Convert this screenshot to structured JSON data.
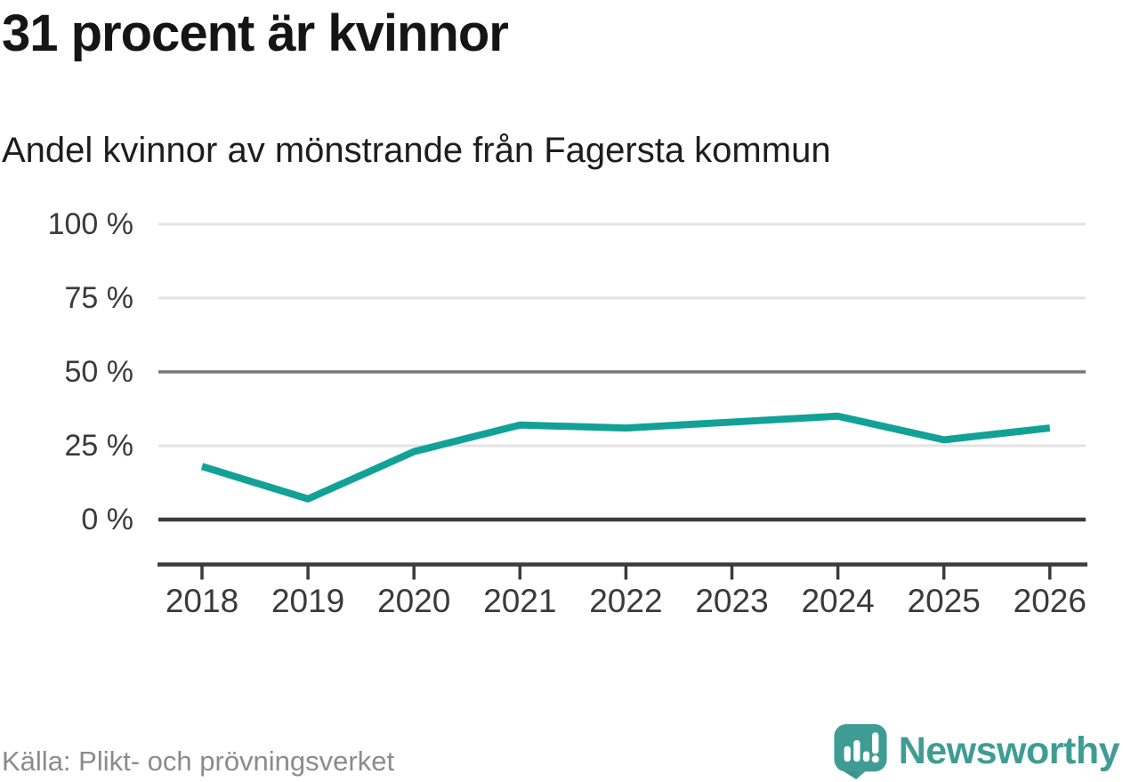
{
  "header": {
    "title": "31 procent är kvinnor",
    "subtitle": "Andel kvinnor av mönstrande från Fagersta kommun"
  },
  "chart_data": {
    "type": "line",
    "title": "31 procent är kvinnor",
    "subtitle": "Andel kvinnor av mönstrande från Fagersta kommun",
    "categories": [
      "2018",
      "2019",
      "2020",
      "2021",
      "2022",
      "2023",
      "2024",
      "2025",
      "2026"
    ],
    "series": [
      {
        "name": "Andel kvinnor av mönstrande",
        "values": [
          18,
          7,
          23,
          32,
          31,
          33,
          35,
          27,
          31
        ]
      }
    ],
    "unit": "%",
    "xlabel": "",
    "ylabel": "",
    "ylim": [
      0,
      100
    ],
    "yticks": [
      {
        "value": 100,
        "label": "100 %",
        "emphasis": "light"
      },
      {
        "value": 75,
        "label": "75 %",
        "emphasis": "light"
      },
      {
        "value": 50,
        "label": "50 %",
        "emphasis": "medium"
      },
      {
        "value": 25,
        "label": "25 %",
        "emphasis": "light"
      },
      {
        "value": 0,
        "label": "0 %",
        "emphasis": "strong"
      }
    ],
    "grid": "horizontal",
    "legend": "none",
    "line_color": "#12a197"
  },
  "footer": {
    "source": "Källa: Plikt- och prövningsverket",
    "brand": "Newsworthy"
  },
  "colors": {
    "line": "#12a197",
    "brand": "#3f9c95",
    "brand_dark": "#368c85",
    "title_text": "#151515",
    "axis": "#3b3b3b",
    "grid_light": "#e3e3e3",
    "grid_medium": "#75757a",
    "muted_text": "#8b8b8b"
  }
}
